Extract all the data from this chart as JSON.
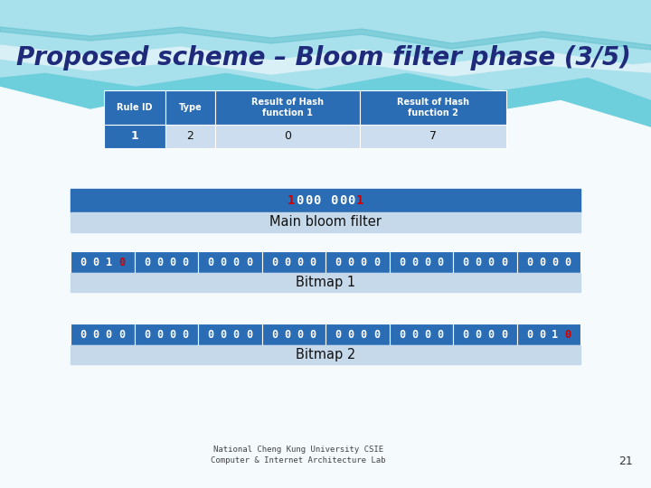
{
  "title": "Proposed scheme – Bloom filter phase (3/5)",
  "title_color": "#1F2A7A",
  "bg_color": "#FFFFFF",
  "table_header_bg": "#2A6DB5",
  "table_header_text": "#FFFFFF",
  "table_row_bg": "#CCDDEF",
  "table_rule_id_bg": "#2A6DB5",
  "table_rule_id_text": "#FFFFFF",
  "table_cols": [
    "Rule ID",
    "Type",
    "Result of Hash\nfunction 1",
    "Result of Hash\nfunction 2"
  ],
  "table_data": [
    [
      "1",
      "2",
      "0",
      "7"
    ]
  ],
  "bloom_filter_bg": "#2A6DB5",
  "bloom_filter_label_bg": "#C5D9EA",
  "bloom_main_label": "Main bloom filter",
  "bitmap1_label": "Bitmap 1",
  "bitmap2_label": "Bitmap 2",
  "bitmap_cell_bg": "#2A6DB5",
  "bitmap_label_bg": "#C5D9EA",
  "footer_text1": "National Cheng Kung University CSIE",
  "footer_text2": "Computer & Internet Architecture Lab",
  "footer_page": "21",
  "wave_bg": "#E8F6FA",
  "wave_teal1": "#5BBFCC",
  "wave_teal2": "#7DD8E8",
  "wave_light": "#B8E8F0",
  "wave_white": "#E0F5FA"
}
